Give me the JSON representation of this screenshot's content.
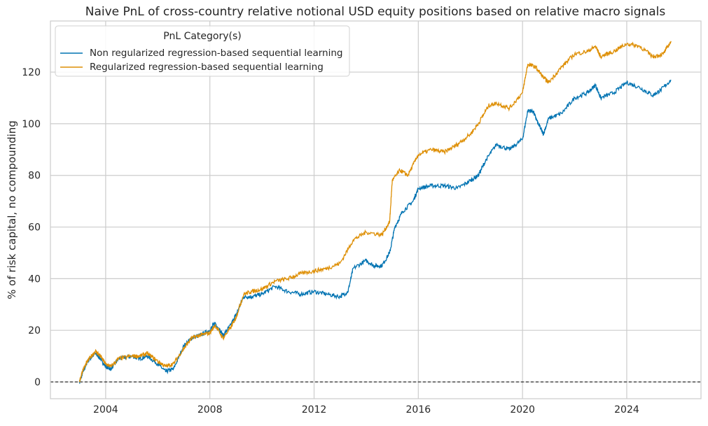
{
  "chart_data": {
    "type": "line",
    "title": "Naive PnL of cross-country relative notional USD equity positions based on relative macro signals",
    "xlabel": "",
    "ylabel": "% of risk capital, no compounding",
    "xlim": [
      2001.88,
      2026.85
    ],
    "ylim": [
      -6.5,
      139.8
    ],
    "xticks": [
      2004,
      2008,
      2012,
      2016,
      2020,
      2024
    ],
    "yticks": [
      0,
      20,
      40,
      60,
      80,
      100,
      120
    ],
    "grid": true,
    "zero_line": {
      "y": 0,
      "style": "dashed",
      "color": "#000000"
    },
    "legend": {
      "title": "PnL Category(s)",
      "placement": "top-left"
    },
    "series": [
      {
        "name": "Non regularized regression-based sequential learning",
        "color": "#0173b2",
        "x": [
          2003.0,
          2003.1,
          2003.3,
          2003.6,
          2003.8,
          2004.0,
          2004.2,
          2004.5,
          2005.0,
          2005.3,
          2005.6,
          2006.0,
          2006.3,
          2006.6,
          2007.0,
          2007.3,
          2007.6,
          2008.0,
          2008.2,
          2008.5,
          2008.8,
          2009.0,
          2009.3,
          2009.6,
          2010.0,
          2010.5,
          2011.0,
          2011.5,
          2012.0,
          2012.5,
          2013.0,
          2013.3,
          2013.5,
          2014.0,
          2014.3,
          2014.6,
          2014.9,
          2015.1,
          2015.4,
          2015.8,
          2016.0,
          2016.5,
          2017.0,
          2017.5,
          2018.0,
          2018.3,
          2018.6,
          2019.0,
          2019.5,
          2020.0,
          2020.2,
          2020.4,
          2020.6,
          2020.8,
          2021.0,
          2021.5,
          2022.0,
          2022.5,
          2022.8,
          2023.0,
          2023.5,
          2024.0,
          2024.5,
          2025.0,
          2025.3,
          2025.7
        ],
        "y": [
          0,
          3,
          8,
          11,
          9,
          6,
          5,
          9,
          10,
          9,
          10,
          7,
          4,
          5,
          14,
          17,
          18,
          20,
          23,
          18,
          22,
          26,
          33,
          33,
          34,
          37,
          35,
          34,
          35,
          34,
          33,
          35,
          44,
          47,
          45,
          45,
          50,
          60,
          66,
          70,
          75,
          76,
          76,
          75,
          78,
          80,
          86,
          92,
          90,
          94,
          105,
          105,
          100,
          96,
          102,
          104,
          110,
          112,
          115,
          110,
          112,
          116,
          114,
          111,
          113,
          117
        ]
      },
      {
        "name": "Regularized regression-based sequential learning",
        "color": "#de8f05",
        "x": [
          2003.0,
          2003.1,
          2003.3,
          2003.6,
          2003.8,
          2004.0,
          2004.2,
          2004.5,
          2005.0,
          2005.3,
          2005.6,
          2006.0,
          2006.3,
          2006.6,
          2007.0,
          2007.3,
          2007.6,
          2008.0,
          2008.2,
          2008.5,
          2008.8,
          2009.0,
          2009.3,
          2009.6,
          2010.0,
          2010.5,
          2011.0,
          2011.5,
          2012.0,
          2012.5,
          2013.0,
          2013.5,
          2014.0,
          2014.6,
          2014.9,
          2015.0,
          2015.3,
          2015.6,
          2016.0,
          2016.5,
          2017.0,
          2017.5,
          2018.0,
          2018.3,
          2018.7,
          2019.0,
          2019.5,
          2020.0,
          2020.2,
          2020.5,
          2020.8,
          2021.0,
          2021.5,
          2022.0,
          2022.5,
          2022.8,
          2023.0,
          2023.5,
          2024.0,
          2024.5,
          2025.0,
          2025.4,
          2025.7
        ],
        "y": [
          0,
          4,
          8,
          12,
          10,
          7,
          6,
          9,
          10,
          10,
          11,
          8,
          6,
          7,
          13,
          17,
          18,
          19,
          22,
          17,
          21,
          25,
          34,
          35,
          36,
          39,
          40,
          42,
          43,
          44,
          46,
          55,
          58,
          57,
          62,
          78,
          82,
          80,
          88,
          90,
          89,
          92,
          96,
          100,
          107,
          108,
          106,
          112,
          123,
          122,
          118,
          116,
          122,
          127,
          128,
          130,
          126,
          128,
          131,
          130,
          126,
          127,
          132
        ]
      }
    ]
  }
}
